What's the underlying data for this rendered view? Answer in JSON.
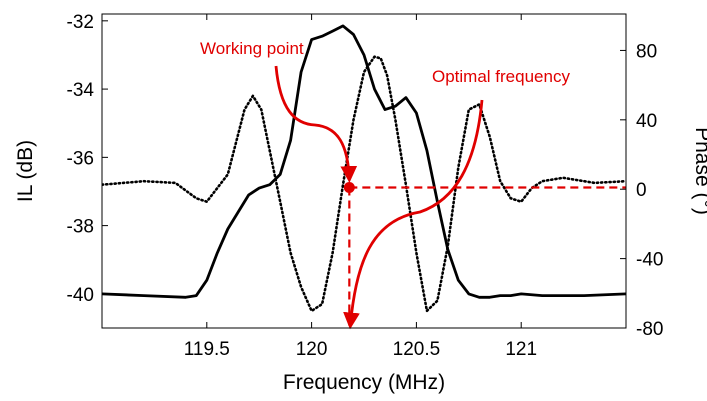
{
  "chart_data": {
    "type": "line",
    "xlabel": "Frequency (MHz)",
    "ylabel_left": "IL (dB)",
    "ylabel_right": "Phase (°)",
    "xlim": [
      119.0,
      121.5
    ],
    "ylim_left": [
      -41.0,
      -31.8
    ],
    "ylim_right": [
      -80,
      101
    ],
    "x_ticks": [
      119.5,
      120,
      120.5,
      121
    ],
    "x_tick_labels": [
      "119.5",
      "120",
      "120.5",
      "121"
    ],
    "y_left_ticks": [
      -32,
      -34,
      -36,
      -38,
      -40
    ],
    "y_left_tick_labels": [
      "-32",
      "-34",
      "-36",
      "-38",
      "-40"
    ],
    "y_right_ticks": [
      80,
      40,
      0,
      -40,
      -80
    ],
    "y_right_tick_labels": [
      "80",
      "40",
      "0",
      "-40",
      "-80"
    ],
    "grid": false,
    "colors": {
      "axes": "#000000",
      "annotation": "#e00000"
    },
    "series": [
      {
        "axis": "left",
        "style": "dotted",
        "x": [
          119.0,
          119.2,
          119.35,
          119.45,
          119.5,
          119.6,
          119.68,
          119.72,
          119.76,
          119.8,
          119.85,
          119.9,
          119.95,
          120.0,
          120.05,
          120.1,
          120.15,
          120.2,
          120.25,
          120.3,
          120.33,
          120.36,
          120.4,
          120.45,
          120.5,
          120.55,
          120.6,
          120.65,
          120.7,
          120.75,
          120.8,
          120.85,
          120.9,
          120.95,
          121.0,
          121.05,
          121.1,
          121.2,
          121.35,
          121.5
        ],
        "y": [
          -36.8,
          -36.7,
          -36.75,
          -37.2,
          -37.3,
          -36.5,
          -34.6,
          -34.2,
          -34.6,
          -35.8,
          -37.3,
          -38.8,
          -39.8,
          -40.5,
          -40.3,
          -38.8,
          -36.8,
          -34.9,
          -33.5,
          -33.05,
          -33.1,
          -33.6,
          -34.9,
          -36.8,
          -38.8,
          -40.5,
          -40.2,
          -38.6,
          -36.3,
          -34.6,
          -34.45,
          -35.4,
          -36.7,
          -37.2,
          -37.3,
          -36.9,
          -36.7,
          -36.6,
          -36.75,
          -36.7
        ]
      },
      {
        "axis": "left",
        "style": "solid",
        "x": [
          119.0,
          119.2,
          119.4,
          119.45,
          119.5,
          119.55,
          119.6,
          119.65,
          119.7,
          119.75,
          119.8,
          119.85,
          119.9,
          119.95,
          120.0,
          120.05,
          120.1,
          120.15,
          120.2,
          120.25,
          120.3,
          120.35,
          120.4,
          120.45,
          120.5,
          120.55,
          120.6,
          120.65,
          120.7,
          120.75,
          120.8,
          120.85,
          120.9,
          120.95,
          121.0,
          121.1,
          121.3,
          121.5
        ],
        "y": [
          -40.0,
          -40.05,
          -40.1,
          -40.05,
          -39.6,
          -38.8,
          -38.1,
          -37.6,
          -37.1,
          -36.9,
          -36.8,
          -36.5,
          -35.5,
          -33.5,
          -32.55,
          -32.45,
          -32.3,
          -32.15,
          -32.4,
          -33.0,
          -34.0,
          -34.6,
          -34.5,
          -34.25,
          -34.7,
          -35.8,
          -37.3,
          -38.7,
          -39.6,
          -40.0,
          -40.1,
          -40.1,
          -40.05,
          -40.05,
          -40.0,
          -40.05,
          -40.05,
          -40.0
        ]
      }
    ],
    "annotations": [
      {
        "text": "Working point",
        "marker": {
          "x": 120.18,
          "y_right": 1
        }
      },
      {
        "text": "Optimal frequency",
        "arrow_end": {
          "x": 120.18,
          "y_right": -80
        }
      }
    ]
  }
}
